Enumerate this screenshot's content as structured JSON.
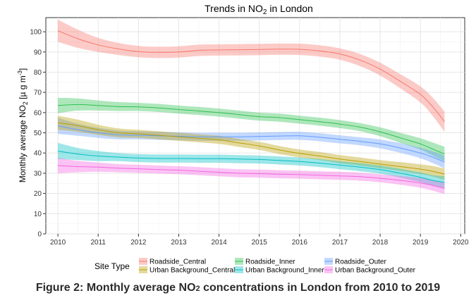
{
  "caption": {
    "prefix": "Figure 2: Monthly average NO",
    "sub": "2",
    "suffix": " concentrations in London from 2010 to 2019"
  },
  "chart_data": {
    "type": "line",
    "title": {
      "prefix": "Trends in NO",
      "sub": "2",
      "suffix": " in London"
    },
    "xlabel": "",
    "ylabel": {
      "prefix": "Monthly average NO",
      "sub": "2",
      "mid": " [µ g m",
      "sup": "-3",
      "suffix": "]"
    },
    "xlim": [
      2009.7,
      2020.1
    ],
    "ylim": [
      0,
      107
    ],
    "x_ticks": [
      2010,
      2011,
      2012,
      2013,
      2014,
      2015,
      2016,
      2017,
      2018,
      2019,
      2020
    ],
    "y_ticks": [
      0,
      10,
      20,
      30,
      40,
      50,
      60,
      70,
      80,
      90,
      100
    ],
    "grid": true,
    "legend": {
      "title": "Site Type",
      "placement": "bottom"
    },
    "x": [
      2010,
      2010.5,
      2011,
      2011.5,
      2012,
      2012.5,
      2013,
      2013.5,
      2014,
      2014.5,
      2015,
      2015.5,
      2016,
      2016.5,
      2017,
      2017.5,
      2018,
      2018.5,
      2019,
      2019.3,
      2019.6
    ],
    "series": [
      {
        "name": "Roadside_Central",
        "color": "#f8766d",
        "values": [
          100.5,
          96.5,
          93.5,
          91.5,
          90.2,
          89.8,
          90.0,
          90.8,
          91.0,
          91.1,
          91.2,
          91.4,
          91.3,
          90.5,
          89.0,
          86.0,
          81.5,
          75.5,
          69.0,
          63.0,
          55.5
        ],
        "band": [
          5.5,
          4.5,
          3.5,
          3.0,
          2.8,
          2.8,
          2.8,
          2.8,
          2.8,
          2.8,
          2.8,
          2.8,
          2.8,
          2.8,
          2.8,
          3.0,
          3.2,
          3.5,
          4.0,
          4.5,
          5.0
        ]
      },
      {
        "name": "Roadside_Inner",
        "color": "#2dc14f",
        "values": [
          63.5,
          64.0,
          63.5,
          63.0,
          62.8,
          62.3,
          61.5,
          60.8,
          60.0,
          59.0,
          58.0,
          57.5,
          56.5,
          55.5,
          54.3,
          52.8,
          50.5,
          47.5,
          44.5,
          42.0,
          39.5
        ],
        "band": [
          3.8,
          3.0,
          2.5,
          2.2,
          2.0,
          2.0,
          2.0,
          2.0,
          2.0,
          2.0,
          2.0,
          2.0,
          2.0,
          2.0,
          2.0,
          2.0,
          2.2,
          2.5,
          2.8,
          3.2,
          3.6
        ]
      },
      {
        "name": "Roadside_Outer",
        "color": "#619cff",
        "values": [
          53.5,
          51.5,
          50.0,
          49.0,
          48.8,
          48.5,
          48.3,
          48.0,
          48.0,
          48.0,
          48.2,
          48.4,
          48.5,
          47.8,
          46.8,
          45.8,
          44.5,
          42.5,
          40.0,
          38.0,
          35.5
        ],
        "band": [
          4.0,
          3.0,
          2.5,
          2.2,
          2.0,
          2.0,
          2.0,
          2.0,
          2.0,
          2.0,
          2.0,
          2.0,
          2.0,
          2.0,
          2.0,
          2.0,
          2.2,
          2.4,
          2.6,
          2.9,
          3.2
        ]
      },
      {
        "name": "Urban Background_Central",
        "color": "#b79f00",
        "values": [
          55.0,
          53.5,
          51.5,
          50.0,
          49.5,
          48.8,
          48.0,
          47.3,
          46.5,
          45.0,
          43.5,
          41.5,
          39.8,
          38.5,
          37.0,
          35.8,
          34.5,
          33.3,
          32.0,
          31.0,
          29.5
        ],
        "band": [
          3.5,
          3.0,
          2.5,
          2.2,
          2.0,
          2.0,
          2.0,
          2.0,
          2.0,
          2.0,
          2.0,
          2.0,
          2.0,
          2.0,
          2.0,
          2.0,
          2.0,
          2.2,
          2.4,
          2.6,
          2.8
        ]
      },
      {
        "name": "Urban Background_Inner",
        "color": "#00bfc4",
        "values": [
          41.0,
          39.5,
          38.5,
          38.0,
          37.5,
          37.3,
          37.3,
          37.2,
          37.2,
          37.0,
          36.8,
          36.3,
          35.8,
          35.0,
          34.0,
          33.0,
          31.8,
          30.0,
          28.0,
          26.5,
          25.5
        ],
        "band": [
          4.0,
          3.0,
          2.5,
          2.0,
          2.0,
          2.0,
          2.0,
          2.0,
          2.0,
          2.0,
          2.0,
          2.0,
          2.0,
          2.0,
          2.0,
          2.0,
          2.0,
          2.2,
          2.4,
          2.6,
          3.0
        ]
      },
      {
        "name": "Urban Background_Outer",
        "color": "#f564e3",
        "values": [
          33.8,
          33.3,
          33.0,
          32.5,
          32.2,
          31.8,
          31.5,
          31.0,
          30.5,
          30.0,
          29.8,
          29.5,
          29.3,
          29.0,
          28.7,
          28.3,
          27.5,
          26.5,
          25.2,
          24.0,
          22.5
        ],
        "band": [
          3.8,
          2.8,
          2.3,
          2.0,
          2.0,
          2.0,
          2.0,
          2.0,
          2.0,
          2.0,
          2.0,
          2.0,
          2.0,
          2.0,
          2.0,
          2.0,
          2.0,
          2.2,
          2.4,
          2.6,
          2.8
        ]
      }
    ],
    "legend_order": [
      "Roadside_Central",
      "Roadside_Inner",
      "Roadside_Outer",
      "Urban Background_Central",
      "Urban Background_Inner",
      "Urban Background_Outer"
    ]
  }
}
